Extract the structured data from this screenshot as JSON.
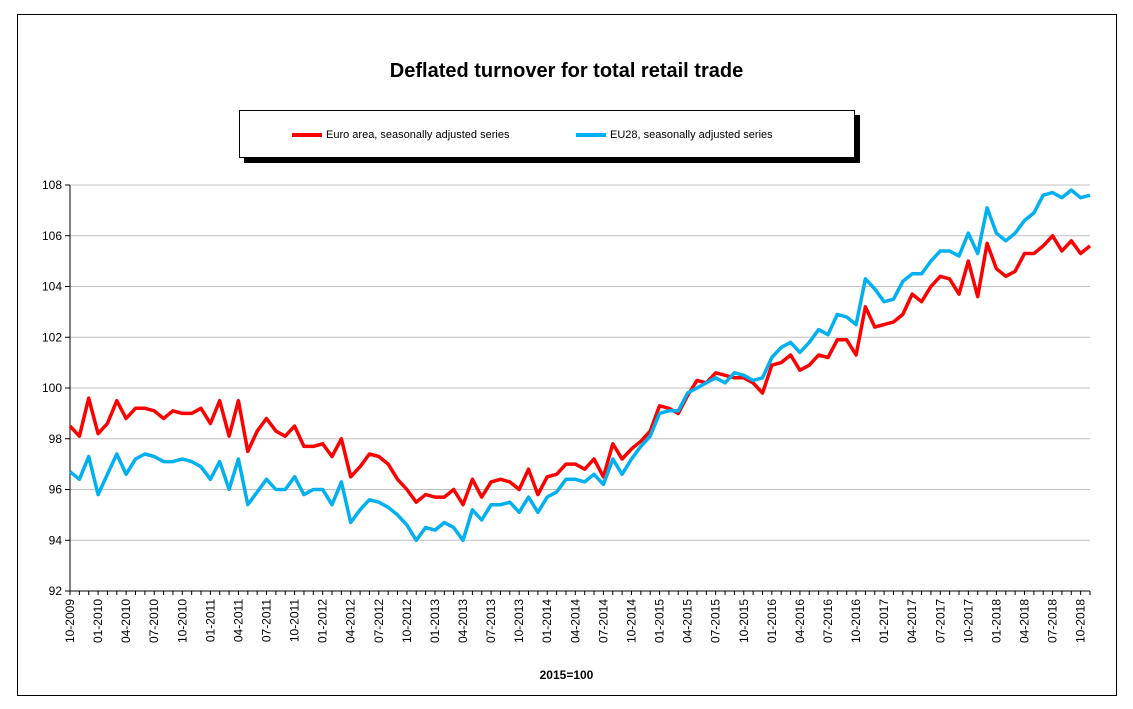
{
  "chart_data": {
    "type": "line",
    "title": "Deflated turnover for total retail trade",
    "xlabel": "2015=100",
    "ylabel": "",
    "ylim": [
      92,
      108
    ],
    "yticks": [
      92,
      94,
      96,
      98,
      100,
      102,
      104,
      106,
      108
    ],
    "grid": true,
    "legend_position": "top",
    "x_tick_labels": [
      "10-2009",
      "01-2010",
      "04-2010",
      "07-2010",
      "10-2010",
      "01-2011",
      "04-2011",
      "07-2011",
      "10-2011",
      "01-2012",
      "04-2012",
      "07-2012",
      "10-2012",
      "01-2013",
      "04-2013",
      "07-2013",
      "10-2013",
      "01-2014",
      "04-2014",
      "07-2014",
      "10-2014",
      "01-2015",
      "04-2015",
      "07-2015",
      "10-2015",
      "01-2016",
      "04-2016",
      "07-2016",
      "10-2016",
      "01-2017",
      "04-2017",
      "07-2017",
      "10-2017",
      "01-2018",
      "04-2018",
      "07-2018",
      "10-2018"
    ],
    "x_start": "10-2009",
    "x_end": "10-2018",
    "series": [
      {
        "name": "Euro area, seasonally adjusted series",
        "color": "#ff0000",
        "values": [
          98.5,
          98.1,
          99.6,
          98.2,
          98.6,
          99.5,
          98.8,
          99.2,
          99.2,
          99.1,
          98.8,
          99.1,
          99.0,
          99.0,
          99.2,
          98.6,
          99.5,
          98.1,
          99.5,
          97.5,
          98.3,
          98.8,
          98.3,
          98.1,
          98.5,
          97.7,
          97.7,
          97.8,
          97.3,
          98.0,
          96.5,
          96.9,
          97.4,
          97.3,
          97.0,
          96.4,
          96.0,
          95.5,
          95.8,
          95.7,
          95.7,
          96.0,
          95.4,
          96.4,
          95.7,
          96.3,
          96.4,
          96.3,
          96.0,
          96.8,
          95.8,
          96.5,
          96.6,
          97.0,
          97.0,
          96.8,
          97.2,
          96.5,
          97.8,
          97.2,
          97.6,
          97.9,
          98.3,
          99.3,
          99.2,
          99.0,
          99.7,
          100.3,
          100.2,
          100.6,
          100.5,
          100.4,
          100.4,
          100.2,
          99.8,
          100.9,
          101.0,
          101.3,
          100.7,
          100.9,
          101.3,
          101.2,
          101.9,
          101.9,
          101.3,
          103.2,
          102.4,
          102.5,
          102.6,
          102.9,
          103.7,
          103.4,
          104.0,
          104.4,
          104.3,
          103.7,
          105.0,
          103.6,
          105.7,
          104.7,
          104.4,
          104.6,
          105.3,
          105.3,
          105.6,
          106.0,
          105.4,
          105.8,
          105.3,
          105.6
        ]
      },
      {
        "name": "EU28, seasonally adjusted series",
        "color": "#00b0f0",
        "values": [
          96.7,
          96.4,
          97.3,
          95.8,
          96.6,
          97.4,
          96.6,
          97.2,
          97.4,
          97.3,
          97.1,
          97.1,
          97.2,
          97.1,
          96.9,
          96.4,
          97.1,
          96.0,
          97.2,
          95.4,
          95.9,
          96.4,
          96.0,
          96.0,
          96.5,
          95.8,
          96.0,
          96.0,
          95.4,
          96.3,
          94.7,
          95.2,
          95.6,
          95.5,
          95.3,
          95.0,
          94.6,
          94.0,
          94.5,
          94.4,
          94.7,
          94.5,
          94.0,
          95.2,
          94.8,
          95.4,
          95.4,
          95.5,
          95.1,
          95.7,
          95.1,
          95.7,
          95.9,
          96.4,
          96.4,
          96.3,
          96.6,
          96.2,
          97.2,
          96.6,
          97.2,
          97.7,
          98.1,
          99.0,
          99.1,
          99.1,
          99.8,
          100.0,
          100.2,
          100.4,
          100.2,
          100.6,
          100.5,
          100.3,
          100.4,
          101.2,
          101.6,
          101.8,
          101.4,
          101.8,
          102.3,
          102.1,
          102.9,
          102.8,
          102.5,
          104.3,
          103.9,
          103.4,
          103.5,
          104.2,
          104.5,
          104.5,
          105.0,
          105.4,
          105.4,
          105.2,
          106.1,
          105.3,
          107.1,
          106.1,
          105.8,
          106.1,
          106.6,
          106.9,
          107.6,
          107.7,
          107.5,
          107.8,
          107.5,
          107.6
        ]
      }
    ]
  }
}
